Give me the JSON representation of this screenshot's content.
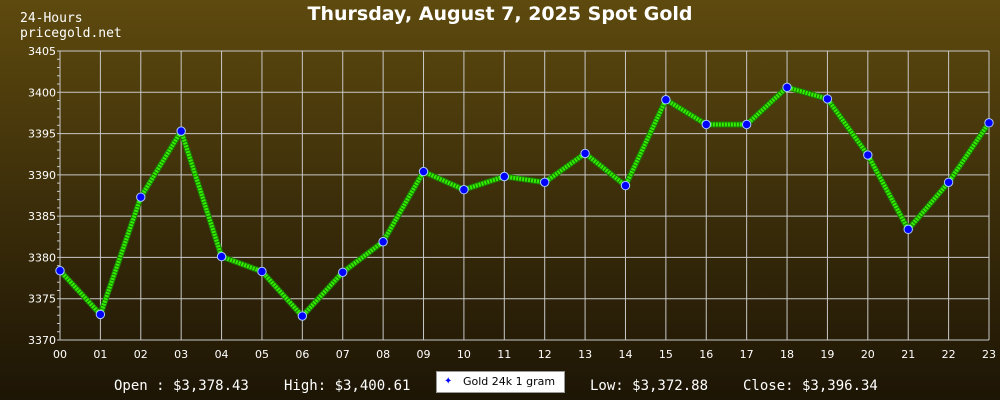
{
  "corner": {
    "line1": "24-Hours",
    "line2": "pricegold.net"
  },
  "stats": {
    "open": "Open : $3,378.43",
    "high": "High: $3,400.61",
    "low": "Low: $3,372.88",
    "close": "Close: $3,396.34"
  },
  "colors": {
    "line": "#33ee00",
    "marker_fill": "#0000ff",
    "marker_stroke": "#aaccff",
    "grid": "#c8c8c8",
    "axis_text": "#ffffff"
  },
  "chart_data": {
    "type": "line",
    "title": "Thursday, August 7, 2025 Spot Gold",
    "xlabel": "",
    "ylabel": "",
    "categories": [
      "00",
      "01",
      "02",
      "03",
      "04",
      "05",
      "06",
      "07",
      "08",
      "09",
      "10",
      "11",
      "12",
      "13",
      "14",
      "15",
      "16",
      "17",
      "18",
      "19",
      "20",
      "21",
      "22",
      "23"
    ],
    "ylim": [
      3370,
      3405
    ],
    "yticks": [
      3370,
      3375,
      3380,
      3385,
      3390,
      3395,
      3400,
      3405
    ],
    "grid": true,
    "legend_position": "bottom",
    "series": [
      {
        "name": "Gold 24k 1 gram",
        "values": [
          3378.4,
          3373.1,
          3387.3,
          3395.3,
          3380.1,
          3378.3,
          3372.9,
          3378.2,
          3381.9,
          3390.4,
          3388.2,
          3389.8,
          3389.1,
          3392.6,
          3388.7,
          3399.1,
          3396.1,
          3396.1,
          3400.6,
          3399.2,
          3392.4,
          3383.4,
          3389.1,
          3396.3
        ]
      }
    ]
  }
}
